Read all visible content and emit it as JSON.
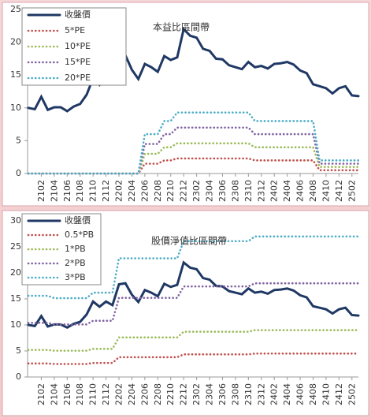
{
  "chart_data": [
    {
      "type": "line",
      "annotation": "本益比區間帶",
      "categories": [
        null,
        null,
        "2102",
        null,
        "2104",
        null,
        "2106",
        null,
        "2108",
        null,
        "2110",
        null,
        "2112",
        null,
        "2202",
        null,
        "2204",
        null,
        "2206",
        null,
        "2208",
        null,
        "2210",
        null,
        "2212",
        null,
        "2302",
        null,
        "2304",
        null,
        "2306",
        null,
        "2308",
        null,
        "2310",
        null,
        "2312",
        null,
        "2402",
        null,
        "2404",
        null,
        "2406",
        null,
        "2408",
        null,
        "2410",
        null,
        "2412",
        null,
        "2502",
        null
      ],
      "ylim": [
        0,
        25
      ],
      "yticks": [
        0,
        5,
        10,
        15,
        20,
        25
      ],
      "series": [
        {
          "name": "收盤價",
          "color": "#1f3864",
          "values": [
            10,
            9.8,
            11.7,
            9.7,
            10.1,
            10.1,
            9.5,
            10.2,
            10.6,
            12,
            14.5,
            13.5,
            14.5,
            13.8,
            17.8,
            18,
            15.8,
            14.4,
            16.7,
            16.2,
            15.5,
            17.9,
            17.3,
            17.7,
            22,
            21,
            20.7,
            19,
            18.7,
            17.5,
            17.4,
            16.5,
            16.2,
            15.9,
            17,
            16.2,
            16.4,
            16,
            16.7,
            16.8,
            17,
            16.6,
            15.7,
            15.3,
            13.6,
            13.3,
            13,
            12.2,
            13,
            13.3,
            11.9,
            11.8
          ]
        },
        {
          "name": "5*PE",
          "color": "#c0504d",
          "values": [
            0,
            0,
            0,
            0,
            0,
            0,
            0,
            0,
            0,
            0,
            0,
            0,
            0,
            0,
            0,
            0,
            0,
            0,
            1.5,
            1.5,
            1.5,
            2,
            2,
            2.3,
            2.3,
            2.3,
            2.3,
            2.3,
            2.3,
            2.3,
            2.3,
            2.3,
            2.3,
            2.3,
            2.3,
            2,
            2,
            2,
            2,
            2,
            2,
            2,
            2,
            2,
            2,
            0.5,
            0.5,
            0.5,
            0.5,
            0.5,
            0.5,
            0.5
          ]
        },
        {
          "name": "10*PE",
          "color": "#9bbb59",
          "values": [
            0,
            0,
            0,
            0,
            0,
            0,
            0,
            0,
            0,
            0,
            0,
            0,
            0,
            0,
            0,
            0,
            0,
            0,
            3,
            3,
            3,
            4,
            4,
            4.6,
            4.6,
            4.6,
            4.6,
            4.6,
            4.6,
            4.6,
            4.6,
            4.6,
            4.6,
            4.6,
            4.6,
            4,
            4,
            4,
            4,
            4,
            4,
            4,
            4,
            4,
            4,
            1,
            1,
            1,
            1,
            1,
            1,
            1
          ]
        },
        {
          "name": "15*PE",
          "color": "#8064a2",
          "values": [
            0,
            0,
            0,
            0,
            0,
            0,
            0,
            0,
            0,
            0,
            0,
            0,
            0,
            0,
            0,
            0,
            0,
            0,
            4.5,
            4.5,
            4.5,
            6,
            6,
            7,
            7,
            7,
            7,
            7,
            7,
            7,
            7,
            7,
            7,
            7,
            7,
            6,
            6,
            6,
            6,
            6,
            6,
            6,
            6,
            6,
            6,
            1.5,
            1.5,
            1.5,
            1.5,
            1.5,
            1.5,
            1.5
          ]
        },
        {
          "name": "20*PE",
          "color": "#4bacc6",
          "values": [
            0,
            0,
            0,
            0,
            0,
            0,
            0,
            0,
            0,
            0,
            0,
            0,
            0,
            0,
            0,
            0,
            0,
            0,
            6,
            6,
            6,
            8,
            8,
            9.3,
            9.3,
            9.3,
            9.3,
            9.3,
            9.3,
            9.3,
            9.3,
            9.3,
            9.3,
            9.3,
            9.3,
            8,
            8,
            8,
            8,
            8,
            8,
            8,
            8,
            8,
            8,
            2,
            2,
            2,
            2,
            2,
            2,
            2
          ]
        }
      ]
    },
    {
      "type": "line",
      "annotation": "股價淨值比區間帶",
      "categories": [
        null,
        null,
        "2102",
        null,
        "2104",
        null,
        "2106",
        null,
        "2108",
        null,
        "2110",
        null,
        "2112",
        null,
        "2202",
        null,
        "2204",
        null,
        "2206",
        null,
        "2208",
        null,
        "2210",
        null,
        "2212",
        null,
        "2302",
        null,
        "2304",
        null,
        "2306",
        null,
        "2308",
        null,
        "2310",
        null,
        "2312",
        null,
        "2402",
        null,
        "2404",
        null,
        "2406",
        null,
        "2408",
        null,
        "2410",
        null,
        "2412",
        null,
        "2502",
        null
      ],
      "ylim": [
        0,
        30
      ],
      "yticks": [
        0,
        5,
        10,
        15,
        20,
        25,
        30
      ],
      "series": [
        {
          "name": "收盤價",
          "color": "#1f3864",
          "values": [
            10,
            9.8,
            11.7,
            9.7,
            10.1,
            10.1,
            9.5,
            10.2,
            10.6,
            12,
            14.5,
            13.5,
            14.5,
            13.8,
            17.8,
            18,
            15.8,
            14.4,
            16.7,
            16.2,
            15.5,
            17.9,
            17.3,
            17.7,
            22,
            21,
            20.7,
            19,
            18.7,
            17.5,
            17.4,
            16.5,
            16.2,
            15.9,
            17,
            16.2,
            16.4,
            16,
            16.7,
            16.8,
            17,
            16.6,
            15.7,
            15.3,
            13.6,
            13.3,
            13,
            12.2,
            13,
            13.3,
            11.9,
            11.8
          ]
        },
        {
          "name": "0.5*PB",
          "color": "#c0504d",
          "values": [
            2.6,
            2.6,
            2.6,
            2.6,
            2.5,
            2.5,
            2.5,
            2.5,
            2.5,
            2.5,
            2.7,
            2.7,
            2.7,
            2.7,
            3.8,
            3.8,
            3.8,
            3.8,
            3.8,
            3.8,
            3.8,
            3.8,
            3.8,
            3.8,
            4.35,
            4.35,
            4.35,
            4.35,
            4.35,
            4.35,
            4.35,
            4.35,
            4.35,
            4.35,
            4.35,
            4.5,
            4.5,
            4.5,
            4.5,
            4.5,
            4.5,
            4.5,
            4.5,
            4.5,
            4.5,
            4.5,
            4.5,
            4.5,
            4.5,
            4.5,
            4.5,
            4.5
          ]
        },
        {
          "name": "1*PB",
          "color": "#9bbb59",
          "values": [
            5.2,
            5.2,
            5.2,
            5.2,
            5.05,
            5.05,
            5.05,
            5.05,
            5.05,
            5.05,
            5.4,
            5.4,
            5.4,
            5.4,
            7.6,
            7.6,
            7.6,
            7.6,
            7.6,
            7.6,
            7.6,
            7.6,
            7.6,
            7.6,
            8.7,
            8.7,
            8.7,
            8.7,
            8.7,
            8.7,
            8.7,
            8.7,
            8.7,
            8.7,
            8.7,
            9,
            9,
            9,
            9,
            9,
            9,
            9,
            9,
            9,
            9,
            9,
            9,
            9,
            9,
            9,
            9,
            9
          ]
        },
        {
          "name": "2*PB",
          "color": "#8064a2",
          "values": [
            10.4,
            10.4,
            10.4,
            10.4,
            10.1,
            10.1,
            10.1,
            10.1,
            10.1,
            10.1,
            10.8,
            10.8,
            10.8,
            10.8,
            15.2,
            15.2,
            15.2,
            15.2,
            15.2,
            15.2,
            15.2,
            15.2,
            15.2,
            15.2,
            17.4,
            17.4,
            17.4,
            17.4,
            17.4,
            17.4,
            17.4,
            17.4,
            17.4,
            17.4,
            17.4,
            18,
            18,
            18,
            18,
            18,
            18,
            18,
            18,
            18,
            18,
            18,
            18,
            18,
            18,
            18,
            18,
            18
          ]
        },
        {
          "name": "3*PB",
          "color": "#4bacc6",
          "values": [
            15.6,
            15.6,
            15.6,
            15.6,
            15.15,
            15.15,
            15.15,
            15.15,
            15.15,
            15.15,
            16.2,
            16.2,
            16.2,
            16.2,
            22.8,
            22.8,
            22.8,
            22.8,
            22.8,
            22.8,
            22.8,
            22.8,
            22.8,
            22.8,
            26.1,
            26.1,
            26.1,
            26.1,
            26.1,
            26.1,
            26.1,
            26.1,
            26.1,
            26.1,
            26.1,
            27,
            27,
            27,
            27,
            27,
            27,
            27,
            27,
            27,
            27,
            27,
            27,
            27,
            27,
            27,
            27,
            27
          ]
        }
      ]
    }
  ]
}
